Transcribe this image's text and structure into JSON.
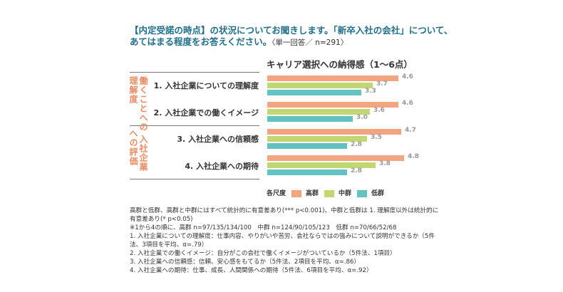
{
  "question": {
    "line1": "【内定受諾の時点】の状況についてお聞きします。「新卒入社の会社」について、",
    "line2": "あてはまる程度をお答えください。",
    "line2_sub": "〈単一回答／ n=291〉"
  },
  "chart_data": {
    "type": "bar",
    "orientation": "horizontal",
    "title": "キャリア選択への納得感（1〜6点）",
    "xlim": [
      0,
      6
    ],
    "groups": [
      {
        "label_col1": "働くことへの",
        "label_col2": "理解度",
        "categories": [
          0,
          1
        ]
      },
      {
        "label_col1": "入社企業",
        "label_col2": "への評価",
        "categories": [
          2,
          3
        ]
      }
    ],
    "categories": [
      "1. 入社企業についての理解度",
      "2. 入社企業での働くイメージ",
      "3. 入社企業への信頼感",
      "4. 入社企業への期待"
    ],
    "series": [
      {
        "name": "高群",
        "color": "#f3a582",
        "values": [
          4.6,
          4.6,
          4.7,
          4.8
        ]
      },
      {
        "name": "中群",
        "color": "#c2d771",
        "values": [
          3.7,
          3.6,
          3.5,
          3.8
        ]
      },
      {
        "name": "低群",
        "color": "#62c2c1",
        "values": [
          3.3,
          3.0,
          2.8,
          2.8
        ]
      }
    ],
    "legend_title": "各尺度",
    "legend_position": "bottom"
  },
  "notes": [
    "高群と低群、高群と中群にはすべて統計的に有意差あり(*** p<0.001)、中群と低群は 1. 理解度以外は統計的に有意差あり(* p<0.05)",
    "※1から4の順に、高群 n=97/135/134/100　中群 n=124/90/105/123　低群 n=70/66/52/68",
    "1. 入社企業についての理解度：仕事内容、やりがいや苦労、会社ならではの強みについて説明ができるか（5件法、3項目を平均、α=.79）",
    "2. 入社企業での働くイメージ：自分がこの会社で働くイメージがついているか（5件法、1項目）",
    "3. 入社企業への信頼感：信頼、安心感をもてるか（5件法、2項目を平均、α=.86）",
    "4. 入社企業への期待：仕事、成長、人間関係への期待（5件法、6項目を平均、α=.92）"
  ]
}
